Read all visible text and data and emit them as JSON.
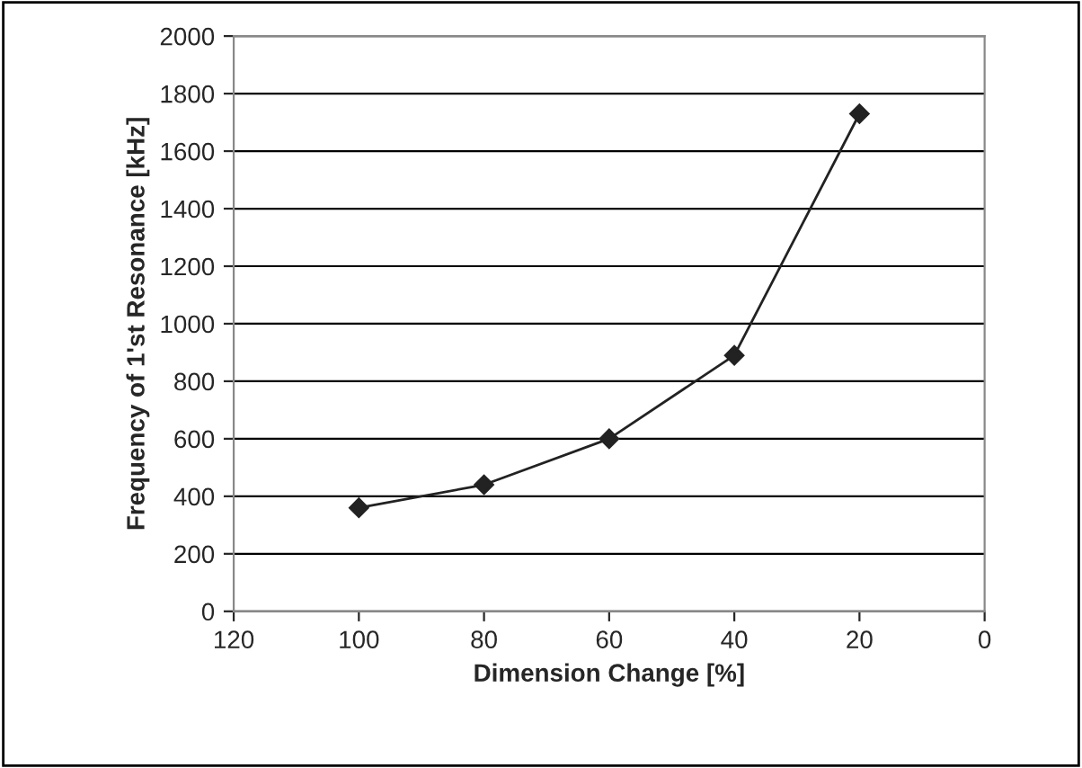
{
  "chart_data": {
    "type": "line",
    "xlabel": "Dimension Change [%]",
    "ylabel": "Frequency of 1'st Resonance [kHz]",
    "x": [
      100,
      80,
      60,
      40,
      20
    ],
    "series": [
      {
        "color": "#222222",
        "values": [
          360,
          440,
          600,
          890,
          1730
        ]
      }
    ],
    "xlim": [
      120,
      0
    ],
    "xticks": [
      120,
      100,
      80,
      60,
      40,
      20,
      0
    ],
    "ylim": [
      0,
      2000
    ],
    "yticks": [
      0,
      200,
      400,
      600,
      800,
      1000,
      1200,
      1400,
      1600,
      1800,
      2000
    ],
    "grid": "y",
    "marker": "diamond",
    "line_style": "solid"
  }
}
